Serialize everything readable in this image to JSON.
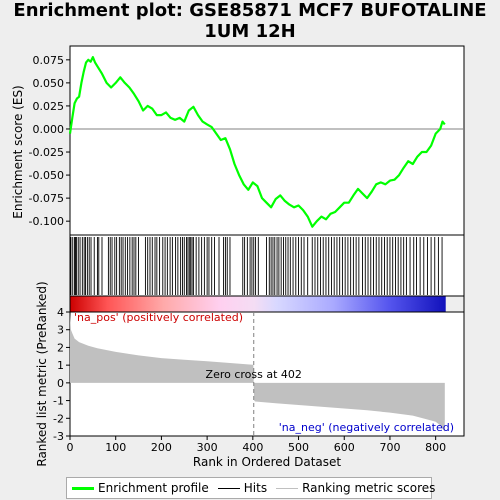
{
  "title": "Enrichment plot: GSE85871 MCF7 BUFOTALINE 1UM 12H",
  "chart_data": {
    "type": "line",
    "title": "Enrichment plot: GSE85871 MCF7 BUFOTALINE 1UM 12H",
    "colors": {
      "enrichment": "#00ff00",
      "hits": "#000000",
      "ranking": "#c0c0c0",
      "pos_label": "#cc0000",
      "neg_label": "#0000cc",
      "zero_cross_line": "#808080",
      "background": "#eeeeee",
      "plot_bg": "#ffffff"
    },
    "enrichment_panel": {
      "ylabel": "Enrichment score (ES)",
      "ylim": [
        -0.115,
        0.09
      ],
      "yticks": [
        "0.075",
        "0.050",
        "0.025",
        "0.000",
        "-0.025",
        "-0.050",
        "-0.075",
        "-0.100"
      ],
      "ytick_values": [
        0.075,
        0.05,
        0.025,
        0.0,
        -0.025,
        -0.05,
        -0.075,
        -0.1
      ],
      "series": [
        {
          "name": "Enrichment profile",
          "x": [
            0,
            5,
            10,
            15,
            20,
            25,
            30,
            35,
            40,
            45,
            50,
            55,
            60,
            70,
            80,
            90,
            100,
            110,
            120,
            130,
            140,
            150,
            160,
            170,
            180,
            190,
            200,
            210,
            220,
            230,
            240,
            250,
            260,
            270,
            280,
            290,
            300,
            310,
            320,
            330,
            340,
            350,
            360,
            370,
            380,
            390,
            400,
            410,
            420,
            430,
            440,
            450,
            460,
            470,
            480,
            490,
            500,
            510,
            520,
            530,
            540,
            550,
            560,
            570,
            580,
            590,
            600,
            610,
            620,
            630,
            640,
            650,
            660,
            670,
            680,
            690,
            700,
            710,
            720,
            730,
            740,
            750,
            760,
            770,
            780,
            790,
            800,
            810,
            815,
            820
          ],
          "y": [
            -0.005,
            0.012,
            0.028,
            0.033,
            0.035,
            0.05,
            0.062,
            0.072,
            0.075,
            0.073,
            0.078,
            0.072,
            0.068,
            0.06,
            0.05,
            0.045,
            0.05,
            0.056,
            0.05,
            0.045,
            0.038,
            0.03,
            0.02,
            0.025,
            0.022,
            0.015,
            0.015,
            0.018,
            0.012,
            0.01,
            0.012,
            0.008,
            0.02,
            0.024,
            0.015,
            0.008,
            0.005,
            0.002,
            -0.005,
            -0.012,
            -0.01,
            -0.022,
            -0.038,
            -0.05,
            -0.06,
            -0.066,
            -0.058,
            -0.062,
            -0.075,
            -0.08,
            -0.085,
            -0.076,
            -0.072,
            -0.078,
            -0.082,
            -0.085,
            -0.083,
            -0.088,
            -0.095,
            -0.106,
            -0.1,
            -0.095,
            -0.098,
            -0.092,
            -0.09,
            -0.085,
            -0.08,
            -0.08,
            -0.072,
            -0.065,
            -0.07,
            -0.075,
            -0.068,
            -0.06,
            -0.058,
            -0.06,
            -0.056,
            -0.055,
            -0.05,
            -0.042,
            -0.035,
            -0.038,
            -0.03,
            -0.025,
            -0.025,
            -0.018,
            -0.005,
            0.0,
            0.008,
            0.005
          ]
        }
      ]
    },
    "hits_panel": {
      "hit_positions": [
        2,
        6,
        10,
        12,
        14,
        18,
        22,
        27,
        31,
        34,
        38,
        42,
        46,
        53,
        60,
        63,
        70,
        84,
        88,
        92,
        98,
        102,
        108,
        112,
        116,
        121,
        126,
        131,
        136,
        140,
        144,
        150,
        165,
        170,
        175,
        180,
        186,
        190,
        196,
        203,
        208,
        213,
        219,
        224,
        231,
        236,
        242,
        246,
        250,
        255,
        258,
        261,
        264,
        267,
        270,
        276,
        282,
        288,
        294,
        300,
        304,
        310,
        316,
        326,
        336,
        340,
        344,
        350,
        378,
        382,
        388,
        394,
        398,
        402,
        406,
        412,
        430,
        436,
        440,
        444,
        448,
        453,
        457,
        462,
        467,
        472,
        477,
        482,
        488,
        494,
        500,
        506,
        512,
        520,
        530,
        536,
        542,
        548,
        554,
        560,
        566,
        572,
        578,
        584,
        590,
        596,
        602,
        608,
        614,
        620,
        626,
        632,
        640,
        646,
        652,
        658,
        664,
        670,
        676,
        682,
        688,
        694,
        700,
        706,
        712,
        718,
        724,
        730,
        736,
        744,
        752,
        758,
        766,
        774,
        782,
        790,
        798,
        806,
        814
      ]
    },
    "ranking_panel": {
      "ylabel": "Ranked list metric (PreRanked)",
      "xlabel": "Rank in Ordered Dataset",
      "ylim": [
        -3,
        4
      ],
      "yticks": [
        "4",
        "3",
        "2",
        "1",
        "0",
        "-1",
        "-2",
        "-3"
      ],
      "ytick_values": [
        4,
        3,
        2,
        1,
        0,
        -1,
        -2,
        -3
      ],
      "x": [
        0,
        2,
        5,
        10,
        20,
        40,
        60,
        100,
        150,
        200,
        250,
        300,
        350,
        400,
        401,
        402,
        403,
        405,
        450,
        500,
        550,
        600,
        650,
        700,
        750,
        780,
        800,
        810,
        815,
        820
      ],
      "y": [
        3.9,
        3.0,
        2.8,
        2.5,
        2.3,
        2.1,
        1.95,
        1.75,
        1.55,
        1.4,
        1.3,
        1.22,
        1.12,
        1.02,
        1.0,
        0.0,
        -1.0,
        -1.05,
        -1.15,
        -1.25,
        -1.35,
        -1.45,
        -1.55,
        -1.68,
        -1.85,
        -2.05,
        -2.2,
        -2.4,
        -2.6,
        -2.75
      ],
      "zero_cross_label": "Zero cross at 402",
      "zero_cross_rank": 402,
      "pos_label": "'na_pos' (positively correlated)",
      "neg_label": "'na_neg' (negatively correlated)"
    },
    "x_axis": {
      "xlim": [
        0,
        862
      ],
      "xticks": [
        "0",
        "100",
        "200",
        "300",
        "400",
        "500",
        "600",
        "700",
        "800"
      ],
      "xtick_values": [
        0,
        100,
        200,
        300,
        400,
        500,
        600,
        700,
        800
      ],
      "n_genes": 822
    },
    "legend": {
      "placement": "bottom",
      "items": [
        {
          "label": "Enrichment profile",
          "color": "#00ff00"
        },
        {
          "label": "Hits",
          "color": "#000000"
        },
        {
          "label": "Ranking metric scores",
          "color": "#c0c0c0"
        }
      ]
    }
  }
}
